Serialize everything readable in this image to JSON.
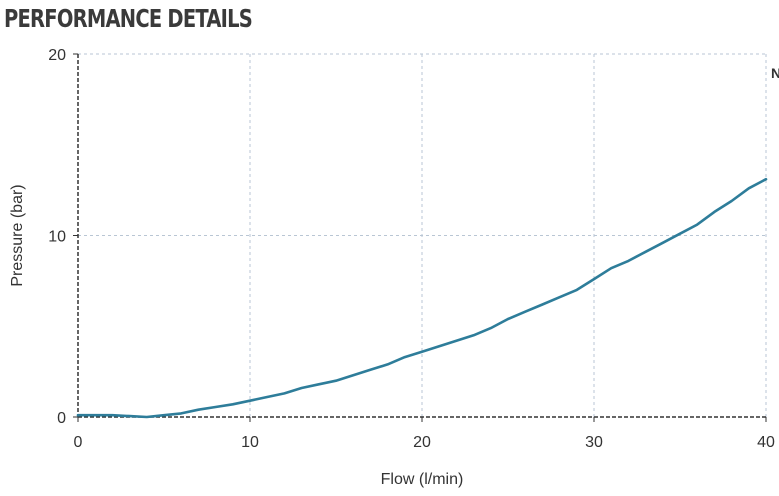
{
  "header": {
    "title": "PERFORMANCE DETAILS"
  },
  "corner_text": "N",
  "chart_data": {
    "type": "line",
    "title": "",
    "xlabel": "Flow (l/min)",
    "ylabel": "Pressure (bar)",
    "xlim": [
      0,
      40
    ],
    "ylim": [
      0,
      20
    ],
    "xticks": [
      0,
      10,
      20,
      30,
      40
    ],
    "yticks": [
      0,
      10,
      20
    ],
    "grid": true,
    "line_color": "#2e7d9a",
    "grid_color": "#b9c6d4",
    "series": [
      {
        "x": [
          0,
          1,
          2,
          3,
          4,
          5,
          6,
          7,
          8,
          9,
          10,
          11,
          12,
          13,
          14,
          15,
          16,
          17,
          18,
          19,
          20,
          21,
          22,
          23,
          24,
          25,
          26,
          27,
          28,
          29,
          30,
          31,
          32,
          33,
          34,
          35,
          36,
          37,
          38,
          39,
          40
        ],
        "values": [
          0.1,
          0.1,
          0.1,
          0.05,
          0.0,
          0.1,
          0.2,
          0.4,
          0.55,
          0.7,
          0.9,
          1.1,
          1.3,
          1.6,
          1.8,
          2.0,
          2.3,
          2.6,
          2.9,
          3.3,
          3.6,
          3.9,
          4.2,
          4.5,
          4.9,
          5.4,
          5.8,
          6.2,
          6.6,
          7.0,
          7.6,
          8.2,
          8.6,
          9.1,
          9.6,
          10.1,
          10.6,
          11.3,
          11.9,
          12.6,
          13.1
        ]
      }
    ]
  }
}
